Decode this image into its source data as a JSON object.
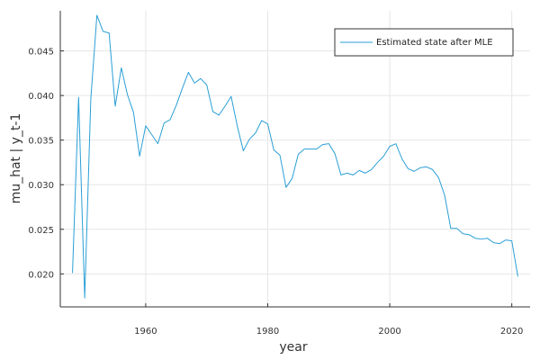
{
  "chart_data": {
    "type": "line",
    "title": "",
    "xlabel": "year",
    "ylabel": "mu_hat | y_t-1",
    "xlim": [
      1946,
      2023
    ],
    "ylim": [
      0.0163,
      0.0495
    ],
    "xticks": [
      1960,
      1980,
      2000,
      2020
    ],
    "xtick_labels": [
      "1960",
      "1980",
      "2000",
      "2020"
    ],
    "yticks": [
      0.02,
      0.025,
      0.03,
      0.035,
      0.04,
      0.045
    ],
    "ytick_labels": [
      "0.020",
      "0.025",
      "0.030",
      "0.035",
      "0.040",
      "0.045"
    ],
    "grid": true,
    "legend_position": "top-right",
    "colors": {
      "series": "#2a9fd6",
      "grid": "#e6e6e6",
      "axis": "#333333"
    },
    "series": [
      {
        "name": "Estimated state after MLE",
        "x": [
          1948,
          1949,
          1950,
          1951,
          1952,
          1953,
          1954,
          1955,
          1956,
          1957,
          1958,
          1959,
          1960,
          1961,
          1962,
          1963,
          1964,
          1965,
          1966,
          1967,
          1968,
          1969,
          1970,
          1971,
          1972,
          1973,
          1974,
          1975,
          1976,
          1977,
          1978,
          1979,
          1980,
          1981,
          1982,
          1983,
          1984,
          1985,
          1986,
          1987,
          1988,
          1989,
          1990,
          1991,
          1992,
          1993,
          1994,
          1995,
          1996,
          1997,
          1998,
          1999,
          2000,
          2001,
          2002,
          2003,
          2004,
          2005,
          2006,
          2007,
          2008,
          2009,
          2010,
          2011,
          2012,
          2013,
          2014,
          2015,
          2016,
          2017,
          2018,
          2019,
          2020,
          2021
        ],
        "values": [
          0.0201,
          0.0398,
          0.0173,
          0.0396,
          0.049,
          0.0472,
          0.047,
          0.0388,
          0.0431,
          0.0401,
          0.0381,
          0.0332,
          0.0366,
          0.0356,
          0.0346,
          0.0369,
          0.0373,
          0.0389,
          0.0408,
          0.0426,
          0.0414,
          0.0419,
          0.0412,
          0.0382,
          0.0378,
          0.0388,
          0.0399,
          0.0366,
          0.0338,
          0.0351,
          0.0358,
          0.0372,
          0.0368,
          0.0339,
          0.0333,
          0.0297,
          0.0307,
          0.0334,
          0.034,
          0.034,
          0.034,
          0.0345,
          0.0346,
          0.0335,
          0.0311,
          0.0313,
          0.0311,
          0.0316,
          0.0313,
          0.0317,
          0.0325,
          0.0332,
          0.0343,
          0.0346,
          0.0329,
          0.0318,
          0.0315,
          0.0319,
          0.032,
          0.0317,
          0.0308,
          0.0288,
          0.0251,
          0.0251,
          0.0245,
          0.0244,
          0.024,
          0.0239,
          0.024,
          0.0235,
          0.0234,
          0.0238,
          0.0237,
          0.0197
        ]
      }
    ]
  }
}
